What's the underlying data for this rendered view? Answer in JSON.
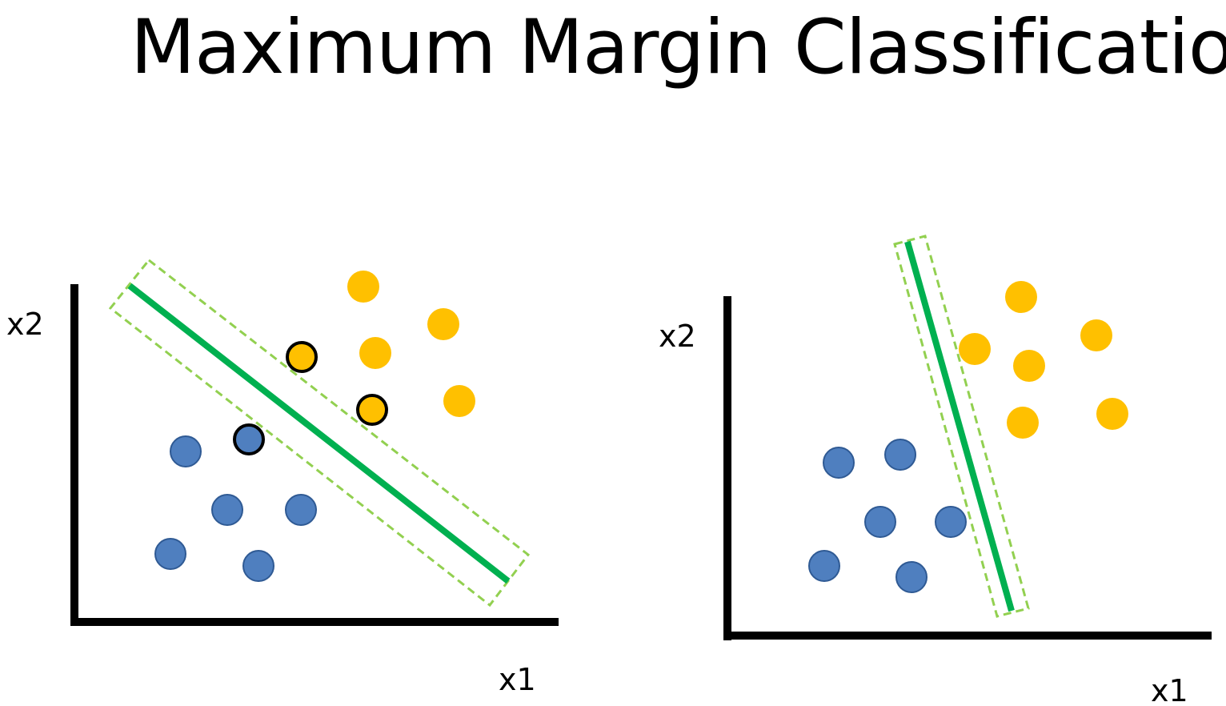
{
  "slide": {
    "title": "Maximum Margin Classification"
  },
  "colors": {
    "class_a": "#4f7fbf",
    "class_a_stroke": "#2f5a94",
    "class_b": "#ffc000",
    "support_vector_outline": "#000000",
    "boundary": "#00b050",
    "margin_box": "#92d050",
    "axis": "#000000"
  },
  "diagrams": [
    {
      "name": "left-plot",
      "x_axis_label": "x1",
      "y_axis_label": "x2",
      "description_of_margin": "wide"
    },
    {
      "name": "right-plot",
      "x_axis_label": "x1",
      "y_axis_label": "x2",
      "description_of_margin": "narrow"
    }
  ]
}
